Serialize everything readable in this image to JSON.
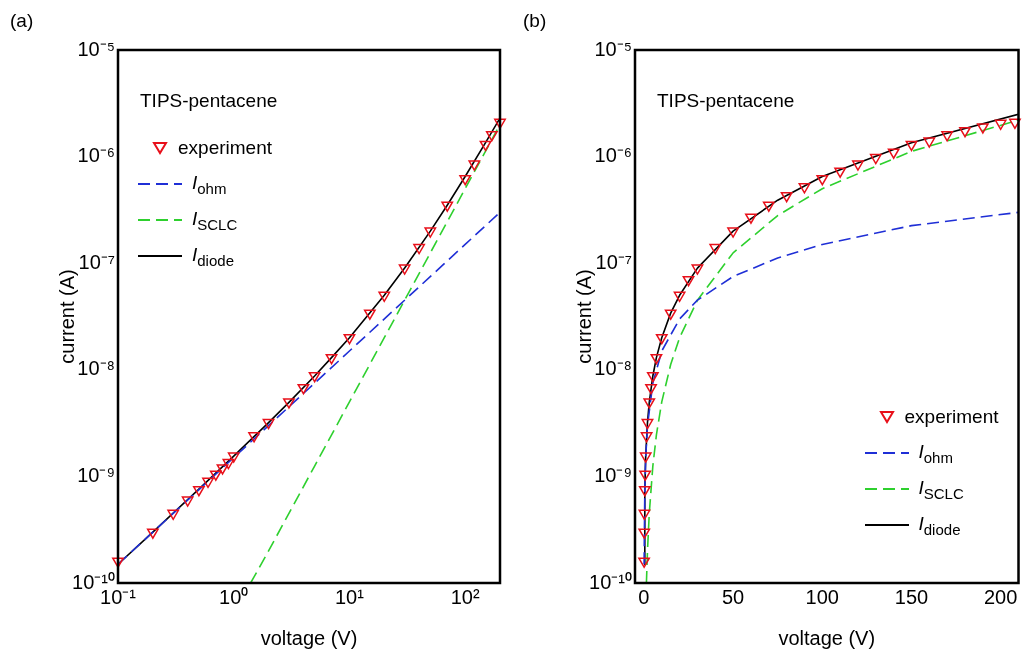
{
  "chart_data": [
    {
      "type": "line",
      "title": "(a)",
      "xlabel": "voltage (V)",
      "ylabel": "current (A)",
      "log": "xy",
      "grid": false,
      "legend": "top left",
      "annotations": [
        "TIPS-pentacene"
      ],
      "xlim": [
        0.1,
        200
      ],
      "xticks": [
        {
          "value": 0.1,
          "label": "10⁻¹"
        },
        {
          "value": 1,
          "label": "10⁰"
        },
        {
          "value": 10,
          "label": "10¹"
        },
        {
          "value": 100,
          "label": "10²"
        }
      ],
      "ylim": [
        1e-10,
        1e-05
      ],
      "yticks": [
        {
          "value": 1e-10,
          "label": "10⁻¹⁰"
        },
        {
          "value": 1e-09,
          "label": "10⁻⁹"
        },
        {
          "value": 1e-08,
          "label": "10⁻⁸"
        },
        {
          "value": 1e-07,
          "label": "10⁻⁷"
        },
        {
          "value": 1e-06,
          "label": "10⁻⁶"
        },
        {
          "value": 1e-05,
          "label": "10⁻⁵"
        }
      ],
      "series": [
        {
          "name": "experiment",
          "type": "scatter",
          "marker": "triangle",
          "color": "#e8101a",
          "x": [
            0.1,
            0.2,
            0.3,
            0.4,
            0.5,
            0.6,
            0.7,
            0.8,
            0.9,
            1,
            1.5,
            2,
            3,
            4,
            5,
            7,
            10,
            15,
            20,
            30,
            40,
            50,
            70,
            100,
            120,
            150,
            170,
            200
          ],
          "values": [
            1.6e-10,
            3e-10,
            4.5e-10,
            6e-10,
            7.5e-10,
            9e-10,
            1.05e-09,
            1.2e-09,
            1.35e-09,
            1.55e-09,
            2.4e-09,
            3.2e-09,
            5e-09,
            6.8e-09,
            8.8e-09,
            1.3e-08,
            2e-08,
            3.4e-08,
            5e-08,
            9e-08,
            1.4e-07,
            2e-07,
            3.5e-07,
            6.2e-07,
            8.5e-07,
            1.3e-06,
            1.6e-06,
            2.1e-06
          ]
        },
        {
          "name": "I$_{ohm}$",
          "type": "line",
          "line_style": "dashed",
          "color": "#1f2fd6",
          "x": [
            0.1,
            1,
            10,
            100,
            200
          ],
          "values": [
            1.5e-10,
            1.5e-09,
            1.5e-08,
            1.5e-07,
            3e-07
          ]
        },
        {
          "name": "I$_{SCLC}$",
          "type": "line",
          "line_style": "dashed",
          "color": "#2ed02e",
          "x": [
            1.4,
            2,
            5,
            10,
            20,
            50,
            100,
            200
          ],
          "values": [
            1e-10,
            2e-10,
            1.25e-09,
            5e-09,
            2e-08,
            1.25e-07,
            5e-07,
            2e-06
          ]
        },
        {
          "name": "I$_{diode}$",
          "type": "line",
          "line_style": "solid",
          "color": "#000000",
          "x": [
            0.1,
            0.2,
            0.5,
            1,
            2,
            3,
            5,
            7,
            10,
            20,
            30,
            50,
            70,
            100,
            150,
            200
          ],
          "values": [
            1.5e-10,
            3e-10,
            7.6e-10,
            1.55e-09,
            3.2e-09,
            4.95e-09,
            8.75e-09,
            1.3e-08,
            2e-08,
            5e-08,
            9e-08,
            2e-07,
            3.5e-07,
            6.5e-07,
            1.35e-06,
            2.3e-06
          ]
        }
      ]
    },
    {
      "type": "line",
      "title": "(b)",
      "xlabel": "voltage (V)",
      "ylabel": "current (A)",
      "log": "y",
      "grid": false,
      "legend": "bottom right",
      "annotations": [
        "TIPS-pentacene"
      ],
      "xlim": [
        -5,
        210
      ],
      "xticks": [
        0,
        50,
        100,
        150,
        200
      ],
      "ylim": [
        1e-10,
        1e-05
      ],
      "yticks": [
        {
          "value": 1e-10,
          "label": "10⁻¹⁰"
        },
        {
          "value": 1e-09,
          "label": "10⁻⁹"
        },
        {
          "value": 1e-08,
          "label": "10⁻⁸"
        },
        {
          "value": 1e-07,
          "label": "10⁻⁷"
        },
        {
          "value": 1e-06,
          "label": "10⁻⁶"
        },
        {
          "value": 1e-05,
          "label": "10⁻⁵"
        }
      ],
      "series": [
        {
          "name": "experiment",
          "type": "scatter",
          "marker": "triangle",
          "color": "#e8101a",
          "x": [
            0.1,
            0.2,
            0.3,
            0.5,
            0.7,
            1,
            1.5,
            2,
            3,
            4,
            5,
            7,
            10,
            15,
            20,
            25,
            30,
            40,
            50,
            60,
            70,
            80,
            90,
            100,
            110,
            120,
            130,
            140,
            150,
            160,
            170,
            180,
            190,
            200,
            208
          ],
          "values": [
            1.6e-10,
            3e-10,
            4.5e-10,
            7.5e-10,
            1.05e-09,
            1.55e-09,
            2.4e-09,
            3.2e-09,
            5e-09,
            6.8e-09,
            8.8e-09,
            1.3e-08,
            2e-08,
            3.4e-08,
            5e-08,
            7e-08,
            9e-08,
            1.4e-07,
            2e-07,
            2.7e-07,
            3.5e-07,
            4.3e-07,
            5.2e-07,
            6.2e-07,
            7.3e-07,
            8.5e-07,
            9.8e-07,
            1.1e-06,
            1.3e-06,
            1.4e-06,
            1.6e-06,
            1.75e-06,
            1.9e-06,
            2.05e-06,
            2.1e-06
          ]
        },
        {
          "name": "I$_{ohm}$",
          "type": "line",
          "line_style": "dashed",
          "color": "#1f2fd6",
          "x": [
            0.1,
            0.5,
            1,
            2,
            5,
            10,
            20,
            30,
            50,
            75,
            100,
            150,
            210
          ],
          "values": [
            1.5e-10,
            7.5e-10,
            1.5e-09,
            3e-09,
            7.5e-09,
            1.5e-08,
            3e-08,
            4.5e-08,
            7.5e-08,
            1.12e-07,
            1.5e-07,
            2.25e-07,
            3e-07
          ]
        },
        {
          "name": "I$_{SCLC}$",
          "type": "line",
          "line_style": "dashed",
          "color": "#2ed02e",
          "x": [
            1.4,
            2,
            3,
            5,
            7,
            10,
            15,
            20,
            30,
            50,
            75,
            100,
            150,
            210
          ],
          "values": [
            1e-10,
            2e-10,
            4.5e-10,
            1.25e-09,
            2.45e-09,
            5e-09,
            1.12e-08,
            2e-08,
            4.5e-08,
            1.25e-07,
            2.8e-07,
            5e-07,
            1.12e-06,
            2.2e-06
          ]
        },
        {
          "name": "I$_{diode}$",
          "type": "line",
          "line_style": "solid",
          "color": "#000000",
          "x": [
            0.1,
            0.5,
            1,
            2,
            3,
            5,
            7,
            10,
            15,
            20,
            30,
            50,
            75,
            100,
            150,
            210
          ],
          "values": [
            1.5e-10,
            7.6e-10,
            1.55e-09,
            3.2e-09,
            4.95e-09,
            8.75e-09,
            1.3e-08,
            2e-08,
            3.4e-08,
            5e-08,
            9e-08,
            2e-07,
            3.9e-07,
            6.5e-07,
            1.35e-06,
            2.5e-06
          ]
        }
      ]
    }
  ]
}
